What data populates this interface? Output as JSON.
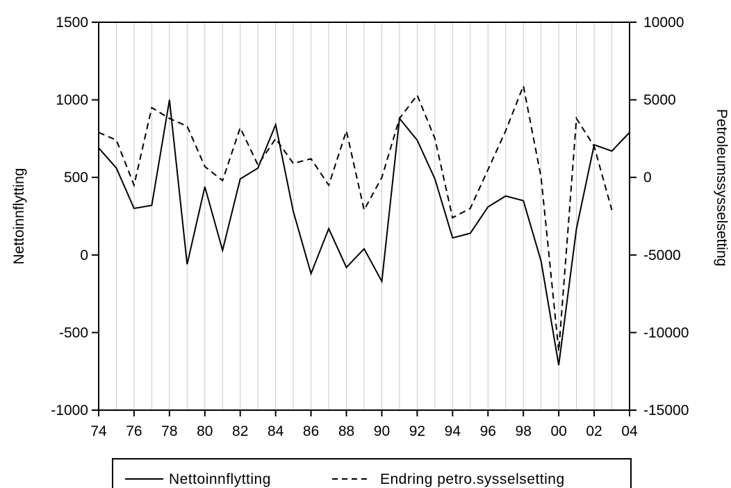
{
  "chart_data": {
    "type": "line",
    "title": "",
    "xlabel": "",
    "ylabel": "Nettoinnflytting",
    "ylabel_right": "Petroleumssysselsetting",
    "x_tick_labels": [
      "74",
      "76",
      "78",
      "80",
      "82",
      "84",
      "86",
      "88",
      "90",
      "92",
      "94",
      "96",
      "98",
      "00",
      "02",
      "04"
    ],
    "xlim": [
      1974,
      2004
    ],
    "ylim": [
      -1000,
      1500
    ],
    "ylim_right": [
      -15000,
      10000
    ],
    "y_ticks": [
      "-1000",
      "-500",
      "0",
      "500",
      "1000",
      "1500"
    ],
    "y_ticks_right": [
      "-15000",
      "-10000",
      "-5000",
      "0",
      "5000",
      "10000"
    ],
    "grid": "vertical",
    "legend_position": "bottom",
    "series": [
      {
        "name": "Nettoinnflytting",
        "axis": "left",
        "style": "solid",
        "color": "#000000",
        "x": [
          1974,
          1975,
          1976,
          1977,
          1978,
          1979,
          1980,
          1981,
          1982,
          1983,
          1984,
          1985,
          1986,
          1987,
          1988,
          1989,
          1990,
          1991,
          1992,
          1993,
          1994,
          1995,
          1996,
          1997,
          1998,
          1999,
          2000,
          2001,
          2002,
          2003,
          2004
        ],
        "values": [
          690,
          560,
          300,
          320,
          1000,
          -60,
          440,
          30,
          490,
          560,
          840,
          280,
          -120,
          170,
          -80,
          40,
          -170,
          880,
          740,
          490,
          110,
          140,
          310,
          380,
          350,
          -40,
          -710,
          170,
          710,
          670,
          790
        ]
      },
      {
        "name": "Endring petro.sysselsetting",
        "axis": "right",
        "style": "dashed",
        "color": "#000000",
        "x": [
          1974,
          1975,
          1976,
          1977,
          1978,
          1979,
          1980,
          1981,
          1982,
          1983,
          1984,
          1985,
          1986,
          1987,
          1988,
          1989,
          1990,
          1991,
          1992,
          1993,
          1994,
          1995,
          1996,
          1997,
          1998,
          1999,
          2000,
          2001,
          2002,
          2003
        ],
        "values": [
          2900,
          2400,
          -500,
          4500,
          3800,
          3300,
          700,
          -200,
          3200,
          800,
          2500,
          900,
          1200,
          -500,
          3000,
          -2100,
          0,
          3800,
          5300,
          2500,
          -2600,
          -2000,
          500,
          3000,
          5900,
          0,
          -11200,
          3800,
          2000,
          -2100
        ]
      }
    ]
  }
}
